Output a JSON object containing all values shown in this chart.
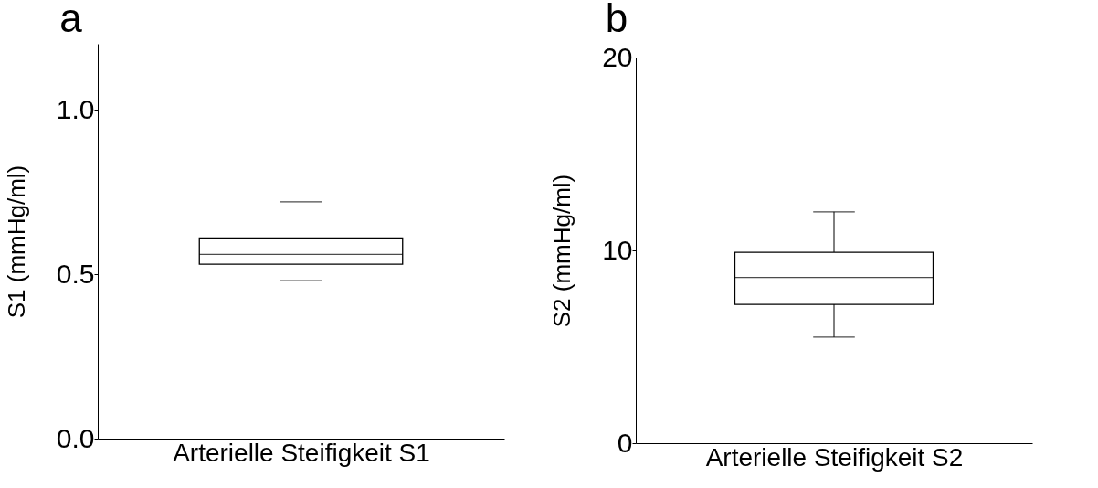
{
  "chart_data": [
    {
      "type": "box",
      "title": "a",
      "xlabel": "Arterielle Steifigkeit S1",
      "ylabel": "S1 (mmHg/ml)",
      "categories": [
        null
      ],
      "boxes": [
        {
          "low": 0.48,
          "q1": 0.53,
          "median": 0.56,
          "q3": 0.61,
          "high": 0.72
        }
      ],
      "ylim": [
        0,
        1.2
      ],
      "yticks": [
        {
          "value": 0,
          "label": "0.0"
        },
        0.5,
        {
          "value": 1,
          "label": "1.0"
        }
      ],
      "tick_labels": "y",
      "grid": false
    },
    {
      "type": "box",
      "title": "b",
      "xlabel": "Arterielle Steifigkeit S2",
      "ylabel": "S2 (mmHg/ml)",
      "categories": [
        null
      ],
      "boxes": [
        {
          "low": 5.5,
          "q1": 7.2,
          "median": 8.6,
          "q3": 9.9,
          "high": 12.0
        }
      ],
      "ylim": [
        0,
        20
      ],
      "yticks": [
        0,
        10,
        20
      ],
      "tick_labels": "y",
      "grid": false
    }
  ]
}
